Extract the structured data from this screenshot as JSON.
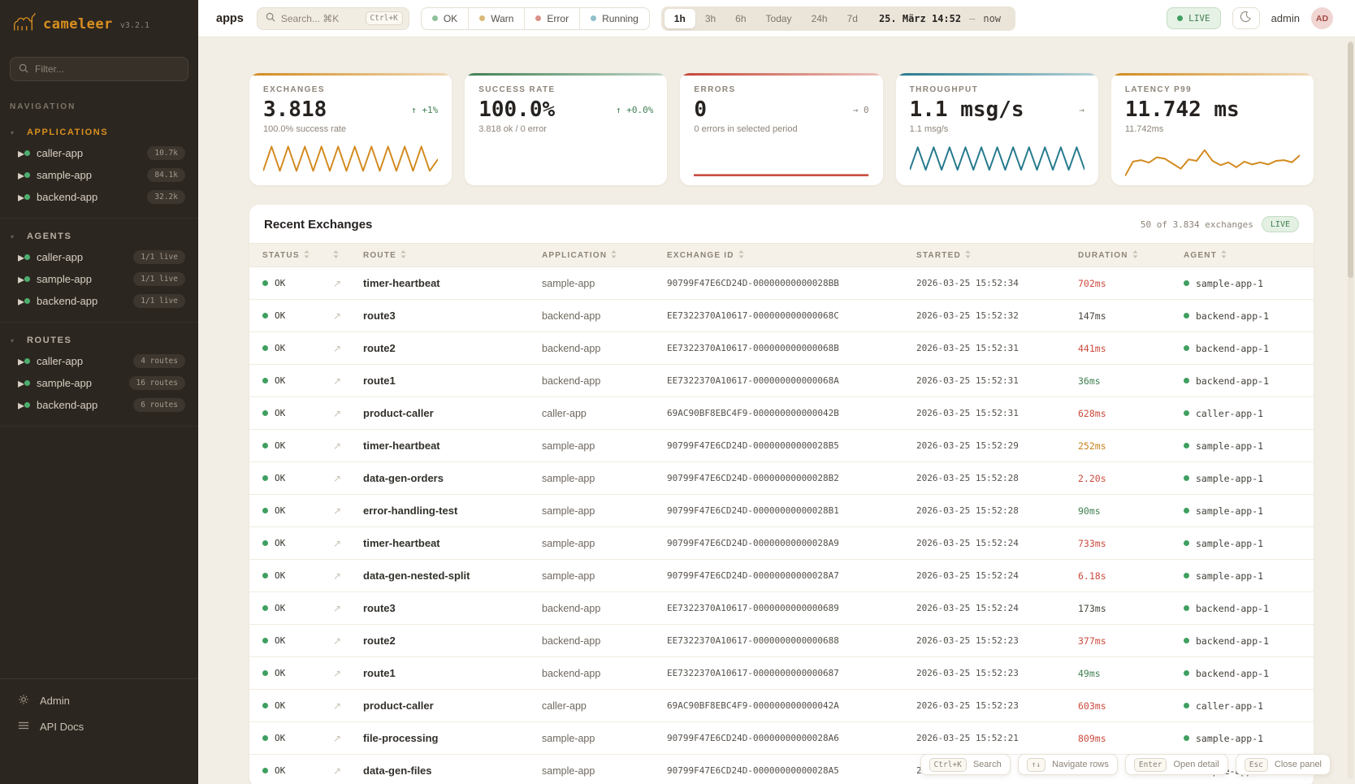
{
  "app": {
    "name": "cameleer",
    "version": "v3.2.1"
  },
  "sidebar": {
    "filter_placeholder": "Filter...",
    "nav_label": "NAVIGATION",
    "sections": [
      {
        "label": "APPLICATIONS",
        "accent": true,
        "items": [
          {
            "name": "caller-app",
            "badge": "10.7k"
          },
          {
            "name": "sample-app",
            "badge": "84.1k"
          },
          {
            "name": "backend-app",
            "badge": "32.2k"
          }
        ]
      },
      {
        "label": "AGENTS",
        "accent": false,
        "items": [
          {
            "name": "caller-app",
            "badge": "1/1 live"
          },
          {
            "name": "sample-app",
            "badge": "1/1 live"
          },
          {
            "name": "backend-app",
            "badge": "1/1 live"
          }
        ]
      },
      {
        "label": "ROUTES",
        "accent": false,
        "items": [
          {
            "name": "caller-app",
            "badge": "4 routes"
          },
          {
            "name": "sample-app",
            "badge": "16 routes"
          },
          {
            "name": "backend-app",
            "badge": "6 routes"
          }
        ]
      }
    ],
    "footer": [
      {
        "label": "Admin",
        "icon": "gear-icon"
      },
      {
        "label": "API Docs",
        "icon": "list-icon"
      }
    ]
  },
  "topbar": {
    "page": "apps",
    "search_placeholder": "Search... ⌘K",
    "search_kbd": "Ctrl+K",
    "status_filters": [
      {
        "label": "OK",
        "color": "#8FBF9A"
      },
      {
        "label": "Warn",
        "color": "#D9B978"
      },
      {
        "label": "Error",
        "color": "#DB9086"
      },
      {
        "label": "Running",
        "color": "#8FBFCB"
      }
    ],
    "time_ranges": [
      "1h",
      "3h",
      "6h",
      "Today",
      "24h",
      "7d"
    ],
    "active_range": "1h",
    "date_label": "25. März 14:52",
    "date_sep": "—",
    "date_end": "now",
    "live_label": "LIVE",
    "user": "admin",
    "avatar": "AD"
  },
  "cards": [
    {
      "label": "EXCHANGES",
      "value": "3.818",
      "delta": "↑ +1%",
      "delta_color": "#3F7F52",
      "sub": "100.0% success rate",
      "accent": "#D28A1E",
      "spark_color": "#D28A1E",
      "spark": [
        78,
        10,
        78,
        10,
        78,
        10,
        78,
        10,
        78,
        10,
        78,
        10,
        78,
        10,
        78,
        10,
        78,
        10,
        78,
        10,
        78,
        45
      ]
    },
    {
      "label": "SUCCESS RATE",
      "value": "100.0%",
      "delta": "↑ +0.0%",
      "delta_color": "#3F7F52",
      "sub": "3.818 ok / 0 error",
      "accent": "#3F7F52",
      "spark_color": "",
      "spark": null
    },
    {
      "label": "ERRORS",
      "value": "0",
      "delta": "→ 0",
      "delta_color": "#8D8478",
      "sub": "0 errors in selected period",
      "accent": "#C44536",
      "spark_color": "#C44536",
      "spark": [
        90,
        90
      ]
    },
    {
      "label": "THROUGHPUT",
      "value": "1.1 msg/s",
      "delta": "→",
      "delta_color": "#8D8478",
      "sub": "1.1 msg/s",
      "accent": "#25798C",
      "spark_color": "#25798C",
      "spark": [
        75,
        12,
        75,
        12,
        75,
        12,
        75,
        12,
        75,
        12,
        75,
        12,
        75,
        12,
        75,
        12,
        75,
        12,
        75,
        12,
        75,
        12,
        75
      ]
    },
    {
      "label": "LATENCY P99",
      "value": "11.742 ms",
      "delta": "",
      "delta_color": "#8D8478",
      "sub": "11.742ms",
      "accent": "#D28A1E",
      "spark_color": "#D28A1E",
      "spark": [
        92,
        52,
        48,
        55,
        40,
        44,
        58,
        72,
        46,
        50,
        20,
        50,
        62,
        54,
        68,
        52,
        60,
        54,
        60,
        50,
        48,
        54,
        34
      ]
    }
  ],
  "table": {
    "title": "Recent Exchanges",
    "summary": "50 of 3.834 exchanges",
    "live_label": "LIVE",
    "columns": [
      "STATUS",
      "",
      "ROUTE",
      "APPLICATION",
      "EXCHANGE ID",
      "STARTED",
      "DURATION",
      "AGENT"
    ],
    "rows": [
      {
        "status": "OK",
        "route": "timer-heartbeat",
        "app": "sample-app",
        "id": "90799F47E6CD24D-00000000000028BB",
        "started": "2026-03-25 15:52:34",
        "duration": "702ms",
        "tone": "slow",
        "agent": "sample-app-1"
      },
      {
        "status": "OK",
        "route": "route3",
        "app": "backend-app",
        "id": "EE7322370A10617-000000000000068C",
        "started": "2026-03-25 15:52:32",
        "duration": "147ms",
        "tone": "mid",
        "agent": "backend-app-1"
      },
      {
        "status": "OK",
        "route": "route2",
        "app": "backend-app",
        "id": "EE7322370A10617-000000000000068B",
        "started": "2026-03-25 15:52:31",
        "duration": "441ms",
        "tone": "slow",
        "agent": "backend-app-1"
      },
      {
        "status": "OK",
        "route": "route1",
        "app": "backend-app",
        "id": "EE7322370A10617-000000000000068A",
        "started": "2026-03-25 15:52:31",
        "duration": "36ms",
        "tone": "fast",
        "agent": "backend-app-1"
      },
      {
        "status": "OK",
        "route": "product-caller",
        "app": "caller-app",
        "id": "69AC90BF8EBC4F9-000000000000042B",
        "started": "2026-03-25 15:52:31",
        "duration": "628ms",
        "tone": "slow",
        "agent": "caller-app-1"
      },
      {
        "status": "OK",
        "route": "timer-heartbeat",
        "app": "sample-app",
        "id": "90799F47E6CD24D-00000000000028B5",
        "started": "2026-03-25 15:52:29",
        "duration": "252ms",
        "tone": "warn",
        "agent": "sample-app-1"
      },
      {
        "status": "OK",
        "route": "data-gen-orders",
        "app": "sample-app",
        "id": "90799F47E6CD24D-00000000000028B2",
        "started": "2026-03-25 15:52:28",
        "duration": "2.20s",
        "tone": "slow",
        "agent": "sample-app-1"
      },
      {
        "status": "OK",
        "route": "error-handling-test",
        "app": "sample-app",
        "id": "90799F47E6CD24D-00000000000028B1",
        "started": "2026-03-25 15:52:28",
        "duration": "90ms",
        "tone": "fast",
        "agent": "sample-app-1"
      },
      {
        "status": "OK",
        "route": "timer-heartbeat",
        "app": "sample-app",
        "id": "90799F47E6CD24D-00000000000028A9",
        "started": "2026-03-25 15:52:24",
        "duration": "733ms",
        "tone": "slow",
        "agent": "sample-app-1"
      },
      {
        "status": "OK",
        "route": "data-gen-nested-split",
        "app": "sample-app",
        "id": "90799F47E6CD24D-00000000000028A7",
        "started": "2026-03-25 15:52:24",
        "duration": "6.18s",
        "tone": "slow",
        "agent": "sample-app-1"
      },
      {
        "status": "OK",
        "route": "route3",
        "app": "backend-app",
        "id": "EE7322370A10617-0000000000000689",
        "started": "2026-03-25 15:52:24",
        "duration": "173ms",
        "tone": "mid",
        "agent": "backend-app-1"
      },
      {
        "status": "OK",
        "route": "route2",
        "app": "backend-app",
        "id": "EE7322370A10617-0000000000000688",
        "started": "2026-03-25 15:52:23",
        "duration": "377ms",
        "tone": "slow",
        "agent": "backend-app-1"
      },
      {
        "status": "OK",
        "route": "route1",
        "app": "backend-app",
        "id": "EE7322370A10617-0000000000000687",
        "started": "2026-03-25 15:52:23",
        "duration": "49ms",
        "tone": "fast",
        "agent": "backend-app-1"
      },
      {
        "status": "OK",
        "route": "product-caller",
        "app": "caller-app",
        "id": "69AC90BF8EBC4F9-000000000000042A",
        "started": "2026-03-25 15:52:23",
        "duration": "603ms",
        "tone": "slow",
        "agent": "caller-app-1"
      },
      {
        "status": "OK",
        "route": "file-processing",
        "app": "sample-app",
        "id": "90799F47E6CD24D-00000000000028A6",
        "started": "2026-03-25 15:52:21",
        "duration": "809ms",
        "tone": "slow",
        "agent": "sample-app-1"
      },
      {
        "status": "OK",
        "route": "data-gen-files",
        "app": "sample-app",
        "id": "90799F47E6CD24D-00000000000028A5",
        "started": "2026-03-25 1",
        "duration": "",
        "tone": "mid",
        "agent": "sample-app-1"
      }
    ]
  },
  "hints": [
    {
      "key": "Ctrl+K",
      "label": "Search"
    },
    {
      "key": "↑↓",
      "label": "Navigate rows"
    },
    {
      "key": "Enter",
      "label": "Open detail"
    },
    {
      "key": "Esc",
      "label": "Close panel"
    }
  ]
}
